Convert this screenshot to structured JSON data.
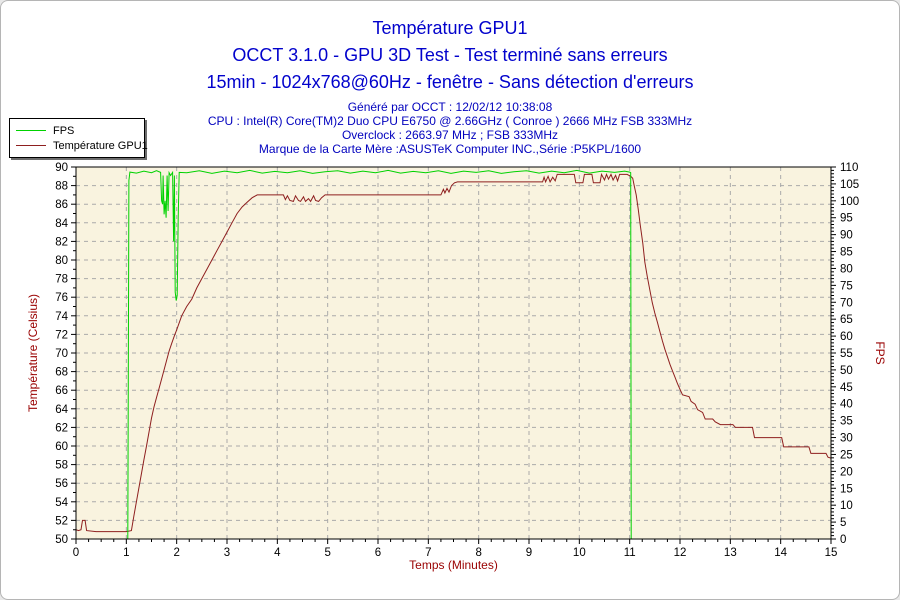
{
  "window": {
    "app": "OCCT graph export"
  },
  "titles": {
    "line1": "Température GPU1",
    "line2": "OCCT 3.1.0 - GPU 3D Test - Test terminé sans erreurs",
    "line3": "15min - 1024x768@60Hz - fenêtre - Sans détection d'erreurs"
  },
  "info": {
    "generated": "Généré par OCCT : 12/02/12 10:38:08",
    "cpu": "CPU : Intel(R) Core(TM)2 Duo CPU E6750 @ 2.66GHz ( Conroe ) 2666 MHz FSB 333MHz",
    "overclock": "Overclock : 2663.97 MHz ; FSB 333MHz",
    "motherboard": "Marque de la Carte Mère :ASUSTeK Computer INC.,Série :P5KPL/1600"
  },
  "legend": {
    "items": [
      {
        "label": "FPS",
        "color": "#00d200"
      },
      {
        "label": "Température GPU1",
        "color": "#8e1f1f"
      }
    ]
  },
  "colors": {
    "title_text": "#0202cc",
    "info_text": "#0202be",
    "plot_background": "#f9f3df",
    "plot_border": "#000000",
    "grid": "#aaaaaa",
    "tick_text": "#000000",
    "axis_title_text": "#990000",
    "fps_series": "#00d200",
    "temp_series": "#8e1f1f"
  },
  "chart_data": {
    "type": "line",
    "grid": "dashed",
    "legend_position": "top-left",
    "x_axis": {
      "label": "Temps (Minutes)",
      "min": 0,
      "max": 15,
      "tick_step": 1,
      "minor_step": 0.25,
      "ticks": [
        0,
        1,
        2,
        3,
        4,
        5,
        6,
        7,
        8,
        9,
        10,
        11,
        12,
        13,
        14,
        15
      ]
    },
    "y_left": {
      "label": "Température (Celsius)",
      "min": 50,
      "max": 90,
      "tick_step": 2,
      "minor_step": 1,
      "ticks": [
        50,
        52,
        54,
        56,
        58,
        60,
        62,
        64,
        66,
        68,
        70,
        72,
        74,
        76,
        78,
        80,
        82,
        84,
        86,
        88,
        90
      ]
    },
    "y_right": {
      "label": "FPS",
      "min": 0,
      "max": 110,
      "tick_step": 5,
      "minor_step": 1,
      "ticks": [
        0,
        5,
        10,
        15,
        20,
        25,
        30,
        35,
        40,
        45,
        50,
        55,
        60,
        65,
        70,
        75,
        80,
        85,
        90,
        95,
        100,
        105,
        110
      ]
    },
    "series": [
      {
        "name": "Température GPU1",
        "axis": "left",
        "color": "#8e1f1f",
        "points": [
          [
            0.0,
            51.0
          ],
          [
            0.05,
            50.9
          ],
          [
            0.1,
            51.0
          ],
          [
            0.13,
            52.0
          ],
          [
            0.18,
            52.0
          ],
          [
            0.21,
            50.9
          ],
          [
            0.4,
            50.8
          ],
          [
            0.7,
            50.8
          ],
          [
            1.0,
            50.8
          ],
          [
            1.1,
            50.9
          ],
          [
            1.15,
            52.5
          ],
          [
            1.2,
            54.0
          ],
          [
            1.25,
            55.5
          ],
          [
            1.3,
            57.0
          ],
          [
            1.35,
            58.5
          ],
          [
            1.4,
            60.0
          ],
          [
            1.45,
            61.5
          ],
          [
            1.5,
            63.0
          ],
          [
            1.55,
            64.2
          ],
          [
            1.6,
            65.2
          ],
          [
            1.65,
            66.2
          ],
          [
            1.7,
            67.2
          ],
          [
            1.75,
            68.2
          ],
          [
            1.8,
            69.2
          ],
          [
            1.85,
            70.2
          ],
          [
            1.9,
            71.0
          ],
          [
            1.95,
            71.8
          ],
          [
            2.0,
            72.5
          ],
          [
            2.1,
            74.0
          ],
          [
            2.2,
            75.0
          ],
          [
            2.3,
            75.8
          ],
          [
            2.4,
            77.0
          ],
          [
            2.5,
            78.0
          ],
          [
            2.6,
            79.0
          ],
          [
            2.7,
            80.0
          ],
          [
            2.8,
            81.0
          ],
          [
            2.9,
            82.0
          ],
          [
            3.0,
            83.0
          ],
          [
            3.1,
            84.0
          ],
          [
            3.2,
            85.0
          ],
          [
            3.3,
            85.7
          ],
          [
            3.4,
            86.2
          ],
          [
            3.5,
            86.7
          ],
          [
            3.6,
            87.0
          ],
          [
            3.9,
            87.0
          ],
          [
            4.12,
            87.0
          ],
          [
            4.16,
            86.5
          ],
          [
            4.2,
            86.9
          ],
          [
            4.25,
            86.4
          ],
          [
            4.32,
            86.3
          ],
          [
            4.36,
            86.9
          ],
          [
            4.42,
            86.4
          ],
          [
            4.46,
            86.3
          ],
          [
            4.52,
            86.8
          ],
          [
            4.56,
            86.3
          ],
          [
            4.62,
            86.6
          ],
          [
            4.66,
            86.3
          ],
          [
            4.72,
            86.9
          ],
          [
            4.76,
            86.4
          ],
          [
            4.82,
            86.3
          ],
          [
            4.88,
            86.7
          ],
          [
            4.95,
            87.0
          ],
          [
            5.5,
            87.0
          ],
          [
            6.0,
            87.0
          ],
          [
            6.5,
            87.0
          ],
          [
            7.0,
            87.0
          ],
          [
            7.25,
            87.0
          ],
          [
            7.3,
            87.6
          ],
          [
            7.33,
            87.2
          ],
          [
            7.37,
            87.7
          ],
          [
            7.41,
            87.3
          ],
          [
            7.46,
            88.0
          ],
          [
            7.52,
            88.3
          ],
          [
            7.58,
            88.4
          ],
          [
            8.0,
            88.4
          ],
          [
            8.6,
            88.4
          ],
          [
            9.0,
            88.4
          ],
          [
            9.27,
            88.4
          ],
          [
            9.3,
            88.9
          ],
          [
            9.33,
            88.4
          ],
          [
            9.38,
            89.0
          ],
          [
            9.42,
            88.4
          ],
          [
            9.47,
            88.9
          ],
          [
            9.52,
            88.5
          ],
          [
            9.56,
            89.2
          ],
          [
            9.75,
            89.2
          ],
          [
            9.9,
            89.2
          ],
          [
            9.93,
            88.3
          ],
          [
            10.07,
            88.3
          ],
          [
            10.1,
            89.2
          ],
          [
            10.25,
            89.2
          ],
          [
            10.28,
            88.3
          ],
          [
            10.41,
            88.3
          ],
          [
            10.44,
            89.2
          ],
          [
            10.5,
            88.6
          ],
          [
            10.54,
            89.2
          ],
          [
            10.58,
            88.7
          ],
          [
            10.63,
            89.2
          ],
          [
            10.67,
            88.6
          ],
          [
            10.72,
            89.1
          ],
          [
            10.76,
            88.5
          ],
          [
            10.8,
            89.2
          ],
          [
            10.95,
            89.2
          ],
          [
            11.02,
            89.0
          ],
          [
            11.06,
            88.8
          ],
          [
            11.09,
            88.0
          ],
          [
            11.13,
            87.0
          ],
          [
            11.17,
            85.5
          ],
          [
            11.21,
            83.8
          ],
          [
            11.26,
            81.8
          ],
          [
            11.3,
            79.8
          ],
          [
            11.35,
            78.2
          ],
          [
            11.4,
            76.8
          ],
          [
            11.45,
            75.4
          ],
          [
            11.5,
            74.3
          ],
          [
            11.55,
            73.3
          ],
          [
            11.6,
            72.3
          ],
          [
            11.65,
            71.3
          ],
          [
            11.7,
            70.4
          ],
          [
            11.75,
            69.6
          ],
          [
            11.8,
            68.8
          ],
          [
            11.85,
            68.1
          ],
          [
            11.9,
            67.4
          ],
          [
            11.95,
            66.7
          ],
          [
            12.0,
            66.1
          ],
          [
            12.05,
            65.5
          ],
          [
            12.18,
            65.3
          ],
          [
            12.22,
            64.8
          ],
          [
            12.3,
            64.5
          ],
          [
            12.35,
            63.9
          ],
          [
            12.45,
            63.6
          ],
          [
            12.5,
            62.9
          ],
          [
            12.65,
            62.9
          ],
          [
            12.7,
            62.6
          ],
          [
            12.8,
            62.3
          ],
          [
            13.05,
            62.3
          ],
          [
            13.1,
            62.0
          ],
          [
            13.44,
            62.0
          ],
          [
            13.48,
            60.9
          ],
          [
            13.8,
            60.9
          ],
          [
            14.02,
            60.9
          ],
          [
            14.06,
            59.9
          ],
          [
            14.3,
            59.9
          ],
          [
            14.56,
            59.9
          ],
          [
            14.6,
            59.2
          ],
          [
            14.9,
            59.2
          ],
          [
            14.94,
            58.8
          ],
          [
            15.0,
            58.7
          ]
        ]
      },
      {
        "name": "FPS",
        "axis": "right",
        "color": "#00d200",
        "points": [
          [
            1.03,
            0
          ],
          [
            1.05,
            106.0
          ],
          [
            1.07,
            108.5
          ],
          [
            1.2,
            108.2
          ],
          [
            1.35,
            108.8
          ],
          [
            1.5,
            108.3
          ],
          [
            1.6,
            108.9
          ],
          [
            1.68,
            108.4
          ],
          [
            1.7,
            100.0
          ],
          [
            1.72,
            99.0
          ],
          [
            1.73,
            107.5
          ],
          [
            1.75,
            96.0
          ],
          [
            1.77,
            100.0
          ],
          [
            1.79,
            95.0
          ],
          [
            1.81,
            107.5
          ],
          [
            1.83,
            97.0
          ],
          [
            1.85,
            108.3
          ],
          [
            1.88,
            107.5
          ],
          [
            1.92,
            108.4
          ],
          [
            1.94,
            88.0
          ],
          [
            1.955,
            107.5
          ],
          [
            1.97,
            73.0
          ],
          [
            1.99,
            70.5
          ],
          [
            2.01,
            72.0
          ],
          [
            2.03,
            95.0
          ],
          [
            2.05,
            108.4
          ],
          [
            2.2,
            108.3
          ],
          [
            2.45,
            108.9
          ],
          [
            2.7,
            108.1
          ],
          [
            2.95,
            108.8
          ],
          [
            3.2,
            108.3
          ],
          [
            3.45,
            109.0
          ],
          [
            3.7,
            108.2
          ],
          [
            3.95,
            108.7
          ],
          [
            4.2,
            108.3
          ],
          [
            4.45,
            108.9
          ],
          [
            4.7,
            108.1
          ],
          [
            4.95,
            108.6
          ],
          [
            5.2,
            108.9
          ],
          [
            5.45,
            108.2
          ],
          [
            5.7,
            108.8
          ],
          [
            5.95,
            108.3
          ],
          [
            6.2,
            109.0
          ],
          [
            6.45,
            108.2
          ],
          [
            6.7,
            108.7
          ],
          [
            6.95,
            108.3
          ],
          [
            7.2,
            108.9
          ],
          [
            7.45,
            108.1
          ],
          [
            7.7,
            108.8
          ],
          [
            7.95,
            108.4
          ],
          [
            8.2,
            108.9
          ],
          [
            8.45,
            108.1
          ],
          [
            8.7,
            108.6
          ],
          [
            8.95,
            108.9
          ],
          [
            9.2,
            108.2
          ],
          [
            9.45,
            108.8
          ],
          [
            9.7,
            108.3
          ],
          [
            9.95,
            109.0
          ],
          [
            10.2,
            108.2
          ],
          [
            10.45,
            108.8
          ],
          [
            10.7,
            108.4
          ],
          [
            10.9,
            108.8
          ],
          [
            11.0,
            108.5
          ],
          [
            11.02,
            108.3
          ],
          [
            11.03,
            0
          ]
        ]
      }
    ]
  }
}
